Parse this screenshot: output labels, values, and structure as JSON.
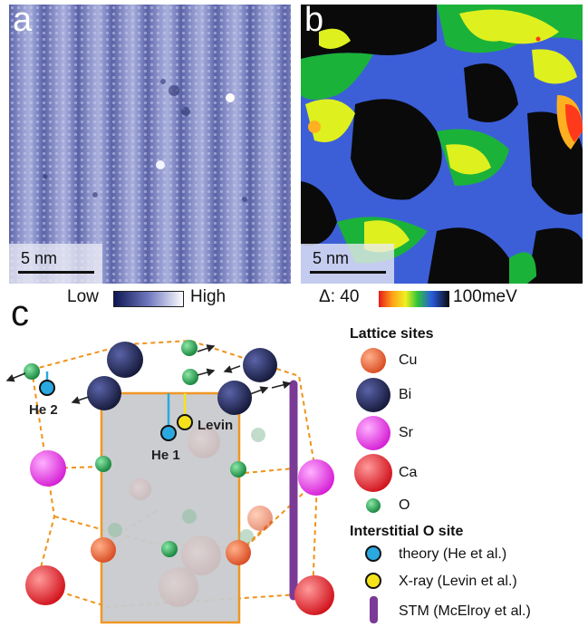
{
  "panels": {
    "a": {
      "letter": "a",
      "scale_label": "5 nm"
    },
    "b": {
      "letter": "b",
      "scale_label": "5 nm"
    },
    "c": {
      "letter": "c"
    }
  },
  "colorbar_a": {
    "low_label": "Low",
    "high_label": "High"
  },
  "colorbar_b": {
    "prefix": "Δ: 40",
    "suffix": "100meV"
  },
  "structure_labels": {
    "he2": "He 2",
    "he1": "He 1",
    "levin": "Levin"
  },
  "legend": {
    "lattice_title": "Lattice sites",
    "lattice": [
      {
        "label": "Cu",
        "color": "#e8603a"
      },
      {
        "label": "Bi",
        "color": "#23285a"
      },
      {
        "label": "Sr",
        "color": "#e62ee6"
      },
      {
        "label": "Ca",
        "color": "#e8202a"
      },
      {
        "label": "O",
        "color": "#1f9a4a"
      }
    ],
    "interstitial_title": "Interstitial O site",
    "interstitial": [
      {
        "label": "theory (He et al.)",
        "color": "#2aa8e0"
      },
      {
        "label": "X-ray (Levin et al.)",
        "color": "#f5e21a"
      },
      {
        "label": "STM (McElroy et al.)",
        "color": "#7a3a96"
      }
    ]
  }
}
